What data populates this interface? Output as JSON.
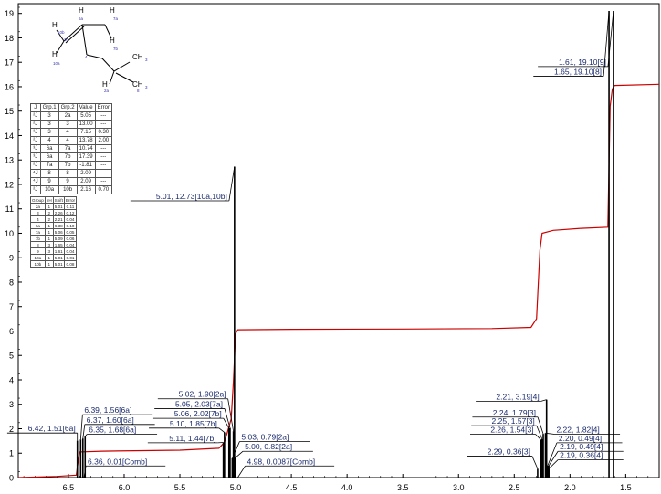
{
  "chart_data": {
    "type": "nmr-spectrum",
    "x_axis": {
      "range_left": 6.95,
      "range_right": 1.2,
      "ticks": [
        "6.5",
        "6.0",
        "5.5",
        "5.0",
        "4.5",
        "4.0",
        "3.5",
        "3.0",
        "2.5",
        "2.0",
        "1.5"
      ],
      "tick_values": [
        6.5,
        6.0,
        5.5,
        5.0,
        4.5,
        4.0,
        3.5,
        3.0,
        2.5,
        2.0,
        1.5
      ]
    },
    "y_axis": {
      "range": [
        0,
        19.4
      ],
      "ticks": [
        "0",
        "1",
        "2",
        "3",
        "4",
        "5",
        "6",
        "7",
        "8",
        "9",
        "10",
        "11",
        "12",
        "13",
        "14",
        "15",
        "16",
        "17",
        "18",
        "19"
      ]
    },
    "integral_curve": [
      [
        6.95,
        0.0
      ],
      [
        6.6,
        0.05
      ],
      [
        6.43,
        0.1
      ],
      [
        6.4,
        1.05
      ],
      [
        6.2,
        1.08
      ],
      [
        5.5,
        1.12
      ],
      [
        5.15,
        1.2
      ],
      [
        5.1,
        1.45
      ],
      [
        5.04,
        2.4
      ],
      [
        5.02,
        3.9
      ],
      [
        5.0,
        5.9
      ],
      [
        4.98,
        6.05
      ],
      [
        4.5,
        6.07
      ],
      [
        3.5,
        6.08
      ],
      [
        2.7,
        6.1
      ],
      [
        2.35,
        6.15
      ],
      [
        2.3,
        6.5
      ],
      [
        2.27,
        9.3
      ],
      [
        2.25,
        10.0
      ],
      [
        2.15,
        10.12
      ],
      [
        1.9,
        10.2
      ],
      [
        1.66,
        10.25
      ],
      [
        1.64,
        15.2
      ],
      [
        1.62,
        15.9
      ],
      [
        1.6,
        16.05
      ],
      [
        1.2,
        16.1
      ]
    ],
    "peaks": [
      {
        "x": 6.42,
        "h": 1.51
      },
      {
        "x": 6.39,
        "h": 1.56
      },
      {
        "x": 6.37,
        "h": 1.6
      },
      {
        "x": 6.35,
        "h": 1.68
      },
      {
        "x": 5.11,
        "h": 1.44
      },
      {
        "x": 5.1,
        "h": 1.85
      },
      {
        "x": 5.06,
        "h": 2.02
      },
      {
        "x": 5.05,
        "h": 2.03
      },
      {
        "x": 5.02,
        "h": 1.9
      },
      {
        "x": 5.01,
        "h": 12.73
      },
      {
        "x": 5.0,
        "h": 0.82
      },
      {
        "x": 5.03,
        "h": 0.79
      },
      {
        "x": 4.98,
        "h": 0.0087
      },
      {
        "x": 2.29,
        "h": 0.36
      },
      {
        "x": 2.26,
        "h": 1.54
      },
      {
        "x": 2.25,
        "h": 1.57
      },
      {
        "x": 2.24,
        "h": 1.79
      },
      {
        "x": 2.21,
        "h": 3.19
      },
      {
        "x": 2.22,
        "h": 1.82
      },
      {
        "x": 2.2,
        "h": 0.49
      },
      {
        "x": 2.19,
        "h": 0.49
      },
      {
        "x": 2.19,
        "h": 0.36
      },
      {
        "x": 1.65,
        "h": 19.1
      },
      {
        "x": 1.61,
        "h": 19.1
      }
    ],
    "annotations": [
      {
        "label": "6.42, 1.51[6a]",
        "peak_x": 6.42,
        "peak_h": 1.51,
        "label_y": 1.9
      },
      {
        "label": "6.39, 1.56[6a]",
        "peak_x": 6.39,
        "peak_h": 1.56,
        "label_y": 2.65
      },
      {
        "label": "6.37, 1.60[6a]",
        "peak_x": 6.37,
        "peak_h": 1.6,
        "label_y": 2.25
      },
      {
        "label": "6.35, 1.68[6a]",
        "peak_x": 6.35,
        "peak_h": 1.68,
        "label_y": 1.85
      },
      {
        "label": "6.36, 0.01[Comb]",
        "peak_x": 6.36,
        "peak_h": 0.01,
        "label_y": 0.55
      },
      {
        "label": "5.02, 1.90[2a]",
        "peak_x": 5.02,
        "peak_h": 1.9,
        "label_y": 3.3
      },
      {
        "label": "5.05, 2.03[7a]",
        "peak_x": 5.05,
        "peak_h": 2.03,
        "label_y": 2.9
      },
      {
        "label": "5.06, 2.02[7b]",
        "peak_x": 5.06,
        "peak_h": 2.02,
        "label_y": 2.5
      },
      {
        "label": "5.10, 1.85[7b]",
        "peak_x": 5.1,
        "peak_h": 1.85,
        "label_y": 2.1
      },
      {
        "label": "5.11, 1.44[7b]",
        "peak_x": 5.11,
        "peak_h": 1.44,
        "label_y": 1.5
      },
      {
        "label": "5.01, 12.73[10a,10b]",
        "peak_x": 5.01,
        "peak_h": 12.73,
        "label_y": 11.4
      },
      {
        "label": "5.03, 0.79[2a]",
        "peak_x": 5.03,
        "peak_h": 0.79,
        "label_y": 1.55
      },
      {
        "label": "5.00, 0.82[2a]",
        "peak_x": 5.0,
        "peak_h": 0.82,
        "label_y": 1.15
      },
      {
        "label": "4.98, 0.0087[Comb]",
        "peak_x": 4.98,
        "peak_h": 0.0087,
        "label_y": 0.55
      },
      {
        "label": "2.21, 3.19[4]",
        "peak_x": 2.21,
        "peak_h": 3.19,
        "label_y": 3.2
      },
      {
        "label": "2.24, 1.79[3]",
        "peak_x": 2.24,
        "peak_h": 1.79,
        "label_y": 2.55
      },
      {
        "label": "2.25, 1.57[3]",
        "peak_x": 2.25,
        "peak_h": 1.57,
        "label_y": 2.2
      },
      {
        "label": "2.26, 1.54[3]",
        "peak_x": 2.26,
        "peak_h": 1.54,
        "label_y": 1.85
      },
      {
        "label": "2.29, 0.36[3]",
        "peak_x": 2.29,
        "peak_h": 0.36,
        "label_y": 0.95
      },
      {
        "label": "2.22, 1.82[4]",
        "peak_x": 2.22,
        "peak_h": 1.82,
        "label_y": 1.85
      },
      {
        "label": "2.20, 0.49[4]",
        "peak_x": 2.2,
        "peak_h": 0.49,
        "label_y": 1.5
      },
      {
        "label": "2.19, 0.49[4]",
        "peak_x": 2.19,
        "peak_h": 0.49,
        "label_y": 1.15
      },
      {
        "label": "2.19, 0.36[4]",
        "peak_x": 2.19,
        "peak_h": 0.36,
        "label_y": 0.8
      },
      {
        "label": "1.61, 19.10[9]",
        "peak_x": 1.61,
        "peak_h": 19.1,
        "label_y": 16.9
      },
      {
        "label": "1.65, 19.10[8]",
        "peak_x": 1.65,
        "peak_h": 19.1,
        "label_y": 16.5
      }
    ],
    "colors": {
      "integral": "#cc0000",
      "peaks": "#000000",
      "labels": "#1a2a6c",
      "axis": "#000000"
    }
  },
  "molecule": {
    "atoms": [
      {
        "text": "H",
        "mx": 57,
        "my": 30,
        "cls": "h"
      },
      {
        "text": "10b",
        "mx": 63,
        "my": 37,
        "cls": "s"
      },
      {
        "text": "10",
        "mx": 70,
        "my": 45,
        "cls": "s"
      },
      {
        "text": "H",
        "mx": 57,
        "my": 62,
        "cls": "h"
      },
      {
        "text": "10a",
        "mx": 58,
        "my": 71,
        "cls": "s"
      },
      {
        "text": "H",
        "mx": 86,
        "my": 14,
        "cls": "h"
      },
      {
        "text": "6a",
        "mx": 86,
        "my": 22,
        "cls": "s"
      },
      {
        "text": "H",
        "mx": 120,
        "my": 14,
        "cls": "h"
      },
      {
        "text": "7a",
        "mx": 124,
        "my": 22,
        "cls": "s"
      },
      {
        "text": "H",
        "mx": 120,
        "my": 47,
        "cls": "h"
      },
      {
        "text": "7b",
        "mx": 124,
        "my": 55,
        "cls": "s"
      },
      {
        "text": "4",
        "mx": 93,
        "my": 64,
        "cls": "s"
      },
      {
        "text": "CH",
        "mx": 145,
        "my": 65,
        "cls": "h"
      },
      {
        "text": "3",
        "mx": 159,
        "my": 67,
        "cls": "s"
      },
      {
        "text": "H",
        "mx": 112,
        "my": 95,
        "cls": "h"
      },
      {
        "text": "2a",
        "mx": 114,
        "my": 101,
        "cls": "s"
      },
      {
        "text": "CH",
        "mx": 145,
        "my": 95,
        "cls": "h"
      },
      {
        "text": "3",
        "mx": 159,
        "my": 97,
        "cls": "s"
      },
      {
        "text": "8",
        "mx": 150,
        "my": 101,
        "cls": "s"
      }
    ]
  },
  "coupling_table": {
    "headers": [
      "J",
      "Grp.1",
      "Grp.2",
      "Value",
      "Error"
    ],
    "rows": [
      [
        "²J",
        "3",
        "2a",
        "5.05",
        "---"
      ],
      [
        "²J",
        "3",
        "3",
        "13.00",
        "---"
      ],
      [
        "³J",
        "3",
        "4",
        "7.15",
        "0.30"
      ],
      [
        "²J",
        "4",
        "4",
        "13.78",
        "2.00"
      ],
      [
        "³J",
        "6a",
        "7a",
        "10.74",
        "---"
      ],
      [
        "³J",
        "6a",
        "7b",
        "17.39",
        "---"
      ],
      [
        "²J",
        "7a",
        "7b",
        "-1.81",
        "---"
      ],
      [
        "⁴J",
        "8",
        "8",
        "2.09",
        "---"
      ],
      [
        "⁴J",
        "9",
        "9",
        "2.09",
        "---"
      ],
      [
        "²J",
        "10a",
        "10b",
        "2.16",
        "0.70"
      ]
    ]
  },
  "shift_table": {
    "headers": [
      "Group",
      "nH",
      "Shift",
      "Error"
    ],
    "rows": [
      [
        "2a",
        "1",
        "5.01",
        "0.11"
      ],
      [
        "3",
        "2",
        "2.26",
        "0.12"
      ],
      [
        "4",
        "2",
        "2.21",
        "0.04"
      ],
      [
        "6a",
        "1",
        "6.38",
        "0.10"
      ],
      [
        "7a",
        "1",
        "5.06",
        "0.05"
      ],
      [
        "7b",
        "1",
        "5.09",
        "0.06"
      ],
      [
        "8",
        "3",
        "1.65",
        "0.04"
      ],
      [
        "9",
        "3",
        "1.61",
        "0.04"
      ],
      [
        "10a",
        "1",
        "5.01",
        "0.01"
      ],
      [
        "10b",
        "1",
        "5.01",
        "0.08"
      ]
    ]
  }
}
